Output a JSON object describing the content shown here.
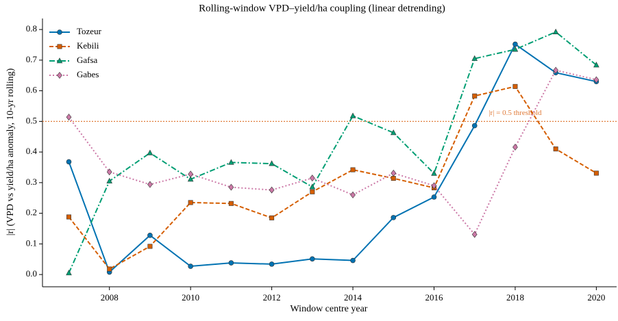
{
  "chart_data": {
    "type": "line",
    "title": "Rolling-window VPD–yield/ha coupling (linear detrending)",
    "x_label": "Window centre year",
    "y_label": "|r| (VPD vs yield/ha anomaly, 10-yr rolling)",
    "x": [
      2007,
      2008,
      2009,
      2010,
      2011,
      2012,
      2013,
      2014,
      2015,
      2016,
      2017,
      2018,
      2019,
      2020
    ],
    "series": [
      {
        "name": "Tozeur",
        "color": "#0072b2",
        "marker": "circle",
        "dash": "solid",
        "values": [
          0.368,
          0.008,
          0.128,
          0.027,
          0.038,
          0.034,
          0.051,
          0.046,
          0.186,
          0.253,
          0.486,
          0.752,
          0.659,
          0.63
        ]
      },
      {
        "name": "Kebili",
        "color": "#d55e00",
        "marker": "square",
        "dash": "dashed",
        "values": [
          0.188,
          0.018,
          0.092,
          0.235,
          0.232,
          0.185,
          0.27,
          0.342,
          0.314,
          0.283,
          0.583,
          0.614,
          0.41,
          0.331
        ]
      },
      {
        "name": "Gafsa",
        "color": "#009e73",
        "marker": "triangle",
        "dash": "dashdot",
        "values": [
          0.005,
          0.305,
          0.397,
          0.311,
          0.366,
          0.362,
          0.286,
          0.518,
          0.463,
          0.33,
          0.705,
          0.735,
          0.792,
          0.684
        ]
      },
      {
        "name": "Gabes",
        "color": "#cc79a7",
        "marker": "diamond",
        "dash": "dotted",
        "values": [
          0.514,
          0.335,
          0.294,
          0.328,
          0.285,
          0.276,
          0.315,
          0.26,
          0.331,
          0.29,
          0.131,
          0.416,
          0.667,
          0.636
        ]
      }
    ],
    "threshold": {
      "value": 0.5,
      "label": "|r| = 0.5 threshold",
      "color": "#e07b39",
      "label_x": 2018
    },
    "xlim": [
      2006.35,
      2020.5
    ],
    "xticks": [
      2008,
      2010,
      2012,
      2014,
      2016,
      2018,
      2020
    ],
    "ylim": [
      -0.04,
      0.836
    ],
    "yticks": [
      {
        "value": 0,
        "label": "0.0"
      },
      {
        "value": 0.1,
        "label": "0.1"
      },
      {
        "value": 0.2,
        "label": "0.2"
      },
      {
        "value": 0.3,
        "label": "0.3"
      },
      {
        "value": 0.4,
        "label": "0.4"
      },
      {
        "value": 0.5,
        "label": "0.5"
      },
      {
        "value": 0.6,
        "label": "0.6"
      },
      {
        "value": 0.7,
        "label": "0.7"
      },
      {
        "value": 0.8,
        "label": "0.8"
      }
    ],
    "legend": "upper left",
    "grid": false
  }
}
